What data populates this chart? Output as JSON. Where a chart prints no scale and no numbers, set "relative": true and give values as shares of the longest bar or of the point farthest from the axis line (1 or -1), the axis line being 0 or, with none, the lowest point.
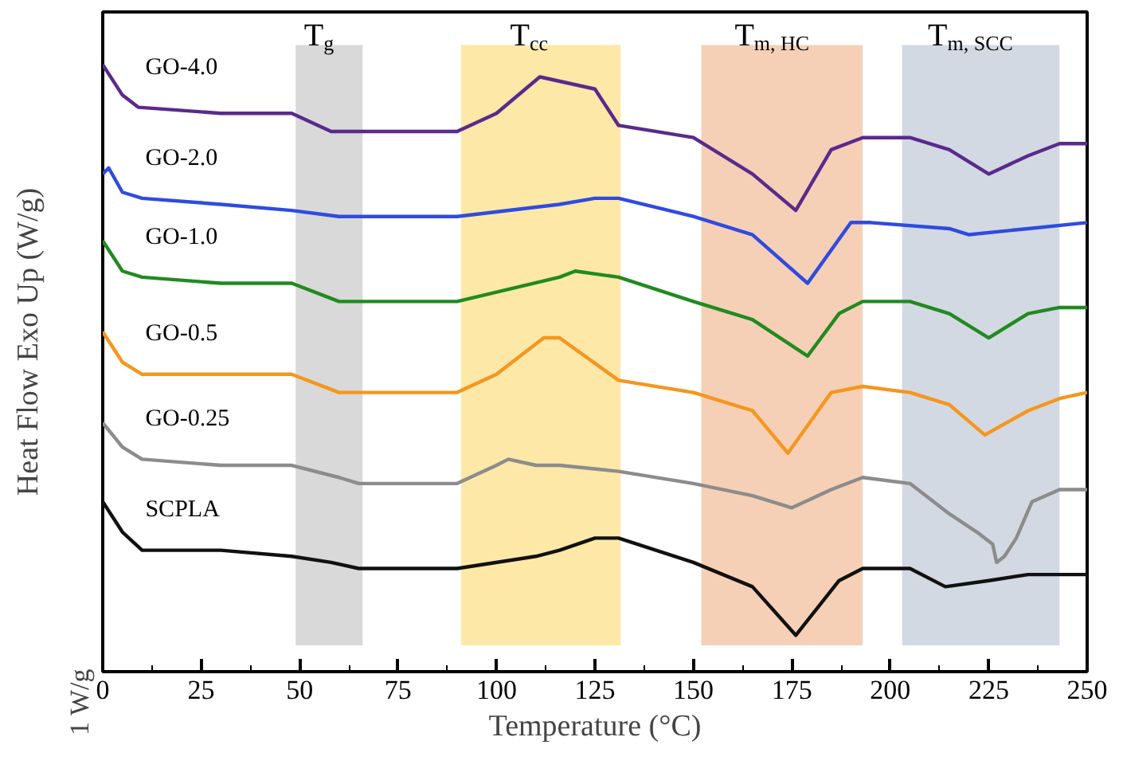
{
  "chart_data": {
    "type": "line",
    "relative": true,
    "xlabel": "Temperature (°C)",
    "ylabel": "Heat Flow Exo Up (W/g)",
    "xlim": [
      0,
      250
    ],
    "xticks": [
      0,
      25,
      50,
      75,
      100,
      125,
      150,
      175,
      200,
      225,
      250
    ],
    "tick_labels": "x",
    "annotations": [
      "1 W/g"
    ],
    "bands": [
      {
        "axis": "x",
        "from": 49,
        "to": 66,
        "label": "T$_{g}$",
        "color": "#d9d9d9"
      },
      {
        "axis": "x",
        "from": 91,
        "to": 131.5,
        "label": "T$_{cc}$",
        "color": "#fde8a8"
      },
      {
        "axis": "x",
        "from": 152,
        "to": 193,
        "label": "T$_{m, HC}$",
        "color": "#f6d0b6"
      },
      {
        "axis": "x",
        "from": 203,
        "to": 243,
        "label": "T$_{m, SCC}$",
        "color": "#d3d9e2"
      }
    ],
    "series": [
      {
        "name": "GO-4.0",
        "color": "#5a2a8c",
        "x": [
          0,
          5,
          9,
          30,
          48,
          58,
          65,
          90,
          100,
          111,
          125,
          131,
          150,
          165,
          176,
          185,
          193,
          205,
          215,
          225,
          235,
          243,
          250
        ],
        "values": [
          1.0,
          0.95,
          0.93,
          0.92,
          0.92,
          0.89,
          0.89,
          0.89,
          0.92,
          0.98,
          0.96,
          0.9,
          0.88,
          0.82,
          0.76,
          0.86,
          0.88,
          0.88,
          0.86,
          0.82,
          0.85,
          0.87,
          0.87
        ]
      },
      {
        "name": "GO-2.0",
        "color": "#2f4be0",
        "x": [
          0,
          1.5,
          5,
          10,
          30,
          48,
          60,
          65,
          90,
          116,
          125,
          131,
          150,
          165,
          179,
          190,
          195,
          215,
          220,
          235,
          250
        ],
        "values": [
          0.82,
          0.83,
          0.79,
          0.78,
          0.77,
          0.76,
          0.75,
          0.75,
          0.75,
          0.77,
          0.78,
          0.78,
          0.75,
          0.72,
          0.64,
          0.74,
          0.74,
          0.73,
          0.72,
          0.73,
          0.74
        ]
      },
      {
        "name": "GO-1.0",
        "color": "#218a21",
        "x": [
          0,
          5,
          10,
          30,
          48,
          60,
          90,
          116,
          120,
          131,
          150,
          165,
          179,
          187,
          193,
          205,
          215,
          225,
          235,
          243,
          250
        ],
        "values": [
          0.71,
          0.66,
          0.65,
          0.64,
          0.64,
          0.61,
          0.61,
          0.65,
          0.66,
          0.65,
          0.61,
          0.58,
          0.52,
          0.59,
          0.61,
          0.61,
          0.59,
          0.55,
          0.59,
          0.6,
          0.6
        ]
      },
      {
        "name": "GO-0.5",
        "color": "#f5961e",
        "x": [
          0,
          5,
          10,
          30,
          48,
          60,
          65,
          90,
          100,
          112,
          116,
          131,
          150,
          165,
          174,
          185,
          193,
          205,
          215,
          224,
          235,
          243,
          250
        ],
        "values": [
          0.56,
          0.51,
          0.49,
          0.49,
          0.49,
          0.46,
          0.46,
          0.46,
          0.49,
          0.55,
          0.55,
          0.48,
          0.46,
          0.43,
          0.36,
          0.46,
          0.47,
          0.46,
          0.44,
          0.39,
          0.43,
          0.45,
          0.46
        ]
      },
      {
        "name": "GO-0.25",
        "color": "#8c8c8c",
        "x": [
          0,
          5,
          10,
          30,
          48,
          60,
          65,
          90,
          100,
          103,
          110,
          116,
          131,
          150,
          165,
          175,
          185,
          193,
          205,
          215,
          222,
          226,
          227,
          229,
          232,
          236,
          243,
          250
        ],
        "values": [
          0.41,
          0.37,
          0.35,
          0.34,
          0.34,
          0.32,
          0.31,
          0.31,
          0.34,
          0.35,
          0.34,
          0.34,
          0.33,
          0.31,
          0.29,
          0.27,
          0.3,
          0.32,
          0.31,
          0.26,
          0.23,
          0.21,
          0.18,
          0.19,
          0.22,
          0.28,
          0.3,
          0.3
        ]
      },
      {
        "name": "SCPLA",
        "color": "#111111",
        "x": [
          0,
          5,
          10,
          30,
          48,
          58,
          65,
          90,
          110,
          116,
          125,
          131,
          150,
          165,
          176,
          187,
          193,
          205,
          214,
          225,
          235,
          250
        ],
        "values": [
          0.28,
          0.23,
          0.2,
          0.2,
          0.19,
          0.18,
          0.17,
          0.17,
          0.19,
          0.2,
          0.22,
          0.22,
          0.18,
          0.14,
          0.06,
          0.15,
          0.17,
          0.17,
          0.14,
          0.15,
          0.16,
          0.16
        ]
      }
    ]
  }
}
